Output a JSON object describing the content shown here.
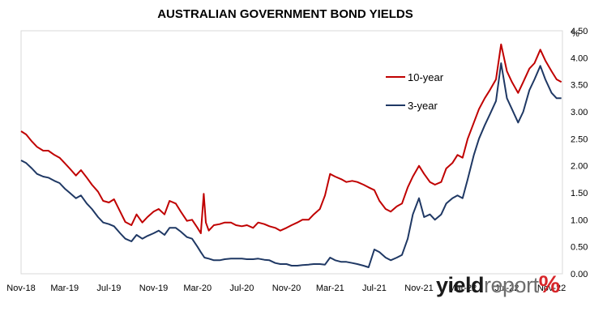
{
  "chart_data": {
    "type": "line",
    "title": "AUSTRALIAN GOVERNMENT BOND YIELDS",
    "ylabel": "%",
    "xlabel": "",
    "ylim": [
      0,
      4.5
    ],
    "yticks": [
      "0.00",
      "0.50",
      "1.00",
      "1.50",
      "2.00",
      "2.50",
      "3.00",
      "3.50",
      "4.00",
      "4.50"
    ],
    "xlim": [
      "2018-11",
      "2022-12"
    ],
    "xticks": [
      "Nov-18",
      "Mar-19",
      "Jul-19",
      "Nov-19",
      "Mar-20",
      "Jul-20",
      "Nov-20",
      "Mar-21",
      "Jul-21",
      "Nov-21",
      "Mar-22",
      "Jul-22",
      "Nov-22"
    ],
    "grid": false,
    "legend": "top-right",
    "series": [
      {
        "name": "10-year",
        "color": "#c00000",
        "points": [
          [
            "2018-11-01",
            2.64
          ],
          [
            "2018-11-15",
            2.58
          ],
          [
            "2018-12-01",
            2.45
          ],
          [
            "2018-12-15",
            2.35
          ],
          [
            "2019-01-01",
            2.28
          ],
          [
            "2019-01-15",
            2.28
          ],
          [
            "2019-02-01",
            2.2
          ],
          [
            "2019-02-15",
            2.15
          ],
          [
            "2019-03-01",
            2.05
          ],
          [
            "2019-03-15",
            1.95
          ],
          [
            "2019-04-01",
            1.82
          ],
          [
            "2019-04-15",
            1.92
          ],
          [
            "2019-05-01",
            1.78
          ],
          [
            "2019-05-15",
            1.65
          ],
          [
            "2019-06-01",
            1.52
          ],
          [
            "2019-06-15",
            1.35
          ],
          [
            "2019-07-01",
            1.32
          ],
          [
            "2019-07-15",
            1.38
          ],
          [
            "2019-08-01",
            1.15
          ],
          [
            "2019-08-15",
            0.96
          ],
          [
            "2019-09-01",
            0.9
          ],
          [
            "2019-09-15",
            1.1
          ],
          [
            "2019-10-01",
            0.95
          ],
          [
            "2019-10-15",
            1.05
          ],
          [
            "2019-11-01",
            1.15
          ],
          [
            "2019-11-15",
            1.2
          ],
          [
            "2019-12-01",
            1.1
          ],
          [
            "2019-12-15",
            1.35
          ],
          [
            "2020-01-01",
            1.3
          ],
          [
            "2020-01-15",
            1.15
          ],
          [
            "2020-02-01",
            0.98
          ],
          [
            "2020-02-15",
            1.0
          ],
          [
            "2020-03-01",
            0.85
          ],
          [
            "2020-03-10",
            0.75
          ],
          [
            "2020-03-18",
            1.48
          ],
          [
            "2020-03-24",
            0.95
          ],
          [
            "2020-04-01",
            0.8
          ],
          [
            "2020-04-15",
            0.9
          ],
          [
            "2020-05-01",
            0.92
          ],
          [
            "2020-05-15",
            0.95
          ],
          [
            "2020-06-01",
            0.95
          ],
          [
            "2020-06-15",
            0.9
          ],
          [
            "2020-07-01",
            0.88
          ],
          [
            "2020-07-15",
            0.9
          ],
          [
            "2020-08-01",
            0.85
          ],
          [
            "2020-08-15",
            0.95
          ],
          [
            "2020-09-01",
            0.92
          ],
          [
            "2020-09-15",
            0.88
          ],
          [
            "2020-10-01",
            0.85
          ],
          [
            "2020-10-15",
            0.8
          ],
          [
            "2020-11-01",
            0.85
          ],
          [
            "2020-11-15",
            0.9
          ],
          [
            "2020-12-01",
            0.95
          ],
          [
            "2020-12-15",
            1.0
          ],
          [
            "2021-01-01",
            1.0
          ],
          [
            "2021-01-15",
            1.1
          ],
          [
            "2021-02-01",
            1.2
          ],
          [
            "2021-02-15",
            1.45
          ],
          [
            "2021-03-01",
            1.85
          ],
          [
            "2021-03-15",
            1.8
          ],
          [
            "2021-04-01",
            1.75
          ],
          [
            "2021-04-15",
            1.7
          ],
          [
            "2021-05-01",
            1.72
          ],
          [
            "2021-05-15",
            1.7
          ],
          [
            "2021-06-01",
            1.65
          ],
          [
            "2021-06-15",
            1.6
          ],
          [
            "2021-07-01",
            1.55
          ],
          [
            "2021-07-15",
            1.35
          ],
          [
            "2021-08-01",
            1.2
          ],
          [
            "2021-08-15",
            1.15
          ],
          [
            "2021-09-01",
            1.25
          ],
          [
            "2021-09-15",
            1.3
          ],
          [
            "2021-10-01",
            1.6
          ],
          [
            "2021-10-15",
            1.8
          ],
          [
            "2021-11-01",
            2.0
          ],
          [
            "2021-11-15",
            1.85
          ],
          [
            "2021-12-01",
            1.7
          ],
          [
            "2021-12-15",
            1.65
          ],
          [
            "2022-01-01",
            1.7
          ],
          [
            "2022-01-15",
            1.95
          ],
          [
            "2022-02-01",
            2.05
          ],
          [
            "2022-02-15",
            2.2
          ],
          [
            "2022-03-01",
            2.15
          ],
          [
            "2022-03-15",
            2.5
          ],
          [
            "2022-04-01",
            2.8
          ],
          [
            "2022-04-15",
            3.05
          ],
          [
            "2022-05-01",
            3.25
          ],
          [
            "2022-05-15",
            3.4
          ],
          [
            "2022-06-01",
            3.6
          ],
          [
            "2022-06-15",
            4.25
          ],
          [
            "2022-07-01",
            3.75
          ],
          [
            "2022-07-15",
            3.55
          ],
          [
            "2022-08-01",
            3.35
          ],
          [
            "2022-08-15",
            3.55
          ],
          [
            "2022-09-01",
            3.8
          ],
          [
            "2022-09-15",
            3.9
          ],
          [
            "2022-10-01",
            4.15
          ],
          [
            "2022-10-15",
            3.95
          ],
          [
            "2022-11-01",
            3.75
          ],
          [
            "2022-11-15",
            3.6
          ],
          [
            "2022-11-28",
            3.55
          ]
        ]
      },
      {
        "name": "3-year",
        "color": "#1f3864",
        "points": [
          [
            "2018-11-01",
            2.1
          ],
          [
            "2018-11-15",
            2.05
          ],
          [
            "2018-12-01",
            1.95
          ],
          [
            "2018-12-15",
            1.85
          ],
          [
            "2019-01-01",
            1.8
          ],
          [
            "2019-01-15",
            1.78
          ],
          [
            "2019-02-01",
            1.72
          ],
          [
            "2019-02-15",
            1.68
          ],
          [
            "2019-03-01",
            1.58
          ],
          [
            "2019-03-15",
            1.5
          ],
          [
            "2019-04-01",
            1.4
          ],
          [
            "2019-04-15",
            1.45
          ],
          [
            "2019-05-01",
            1.3
          ],
          [
            "2019-05-15",
            1.2
          ],
          [
            "2019-06-01",
            1.05
          ],
          [
            "2019-06-15",
            0.95
          ],
          [
            "2019-07-01",
            0.92
          ],
          [
            "2019-07-15",
            0.88
          ],
          [
            "2019-08-01",
            0.75
          ],
          [
            "2019-08-15",
            0.65
          ],
          [
            "2019-09-01",
            0.6
          ],
          [
            "2019-09-15",
            0.72
          ],
          [
            "2019-10-01",
            0.65
          ],
          [
            "2019-10-15",
            0.7
          ],
          [
            "2019-11-01",
            0.75
          ],
          [
            "2019-11-15",
            0.8
          ],
          [
            "2019-12-01",
            0.72
          ],
          [
            "2019-12-15",
            0.85
          ],
          [
            "2020-01-01",
            0.85
          ],
          [
            "2020-01-15",
            0.78
          ],
          [
            "2020-02-01",
            0.68
          ],
          [
            "2020-02-15",
            0.65
          ],
          [
            "2020-03-01",
            0.5
          ],
          [
            "2020-03-10",
            0.4
          ],
          [
            "2020-03-20",
            0.3
          ],
          [
            "2020-04-01",
            0.28
          ],
          [
            "2020-04-15",
            0.25
          ],
          [
            "2020-05-01",
            0.25
          ],
          [
            "2020-05-15",
            0.27
          ],
          [
            "2020-06-01",
            0.28
          ],
          [
            "2020-06-15",
            0.28
          ],
          [
            "2020-07-01",
            0.28
          ],
          [
            "2020-07-15",
            0.27
          ],
          [
            "2020-08-01",
            0.27
          ],
          [
            "2020-08-15",
            0.28
          ],
          [
            "2020-09-01",
            0.26
          ],
          [
            "2020-09-15",
            0.25
          ],
          [
            "2020-10-01",
            0.2
          ],
          [
            "2020-10-15",
            0.18
          ],
          [
            "2020-11-01",
            0.18
          ],
          [
            "2020-11-15",
            0.15
          ],
          [
            "2020-12-01",
            0.15
          ],
          [
            "2020-12-15",
            0.16
          ],
          [
            "2021-01-01",
            0.17
          ],
          [
            "2021-01-15",
            0.18
          ],
          [
            "2021-02-01",
            0.18
          ],
          [
            "2021-02-15",
            0.17
          ],
          [
            "2021-03-01",
            0.3
          ],
          [
            "2021-03-15",
            0.25
          ],
          [
            "2021-04-01",
            0.22
          ],
          [
            "2021-04-15",
            0.22
          ],
          [
            "2021-05-01",
            0.2
          ],
          [
            "2021-05-15",
            0.18
          ],
          [
            "2021-06-01",
            0.15
          ],
          [
            "2021-06-15",
            0.12
          ],
          [
            "2021-07-01",
            0.45
          ],
          [
            "2021-07-15",
            0.4
          ],
          [
            "2021-08-01",
            0.3
          ],
          [
            "2021-08-15",
            0.25
          ],
          [
            "2021-09-01",
            0.3
          ],
          [
            "2021-09-15",
            0.35
          ],
          [
            "2021-10-01",
            0.65
          ],
          [
            "2021-10-15",
            1.1
          ],
          [
            "2021-11-01",
            1.4
          ],
          [
            "2021-11-15",
            1.05
          ],
          [
            "2021-12-01",
            1.1
          ],
          [
            "2021-12-15",
            1.0
          ],
          [
            "2022-01-01",
            1.1
          ],
          [
            "2022-01-15",
            1.3
          ],
          [
            "2022-02-01",
            1.4
          ],
          [
            "2022-02-15",
            1.45
          ],
          [
            "2022-03-01",
            1.4
          ],
          [
            "2022-03-15",
            1.75
          ],
          [
            "2022-04-01",
            2.2
          ],
          [
            "2022-04-15",
            2.5
          ],
          [
            "2022-05-01",
            2.75
          ],
          [
            "2022-05-15",
            2.95
          ],
          [
            "2022-06-01",
            3.2
          ],
          [
            "2022-06-15",
            3.9
          ],
          [
            "2022-07-01",
            3.25
          ],
          [
            "2022-07-15",
            3.05
          ],
          [
            "2022-08-01",
            2.8
          ],
          [
            "2022-08-15",
            3.0
          ],
          [
            "2022-09-01",
            3.4
          ],
          [
            "2022-09-15",
            3.6
          ],
          [
            "2022-10-01",
            3.85
          ],
          [
            "2022-10-15",
            3.6
          ],
          [
            "2022-11-01",
            3.35
          ],
          [
            "2022-11-15",
            3.25
          ],
          [
            "2022-11-28",
            3.25
          ]
        ]
      }
    ]
  },
  "logo": {
    "part1": "yield",
    "part2": "report",
    "part3": "%"
  }
}
